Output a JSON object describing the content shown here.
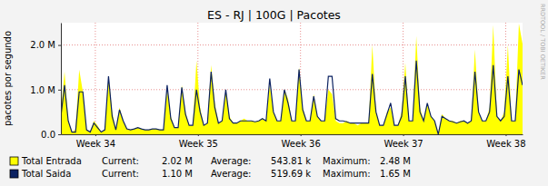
{
  "chart_data": {
    "type": "line",
    "title": "ES - RJ | 100G | Pacotes",
    "y_label": "pacotes por segundo",
    "watermark": "RRDTOOL / TOBI OETIKER",
    "x": [
      0,
      0.25,
      0.5,
      0.75,
      1,
      1.25,
      1.5,
      1.75,
      2,
      2.25,
      2.5,
      2.75,
      3,
      3.25,
      3.5,
      3.75,
      4,
      4.25,
      4.5,
      4.75,
      5,
      5.25,
      5.5,
      5.75,
      6,
      6.25,
      6.5,
      6.75,
      7,
      7.25,
      7.5,
      7.75,
      8,
      8.25,
      8.5,
      8.75,
      9,
      9.25,
      9.5,
      9.75,
      10,
      10.25,
      10.5,
      10.75,
      11,
      11.25,
      11.5,
      11.75,
      12,
      12.25,
      12.5,
      12.75,
      13,
      13.25,
      13.5,
      13.75,
      14,
      14.25,
      14.5,
      14.75,
      15,
      15.25,
      15.5,
      15.75,
      16,
      16.25,
      16.5,
      16.75,
      17,
      17.25,
      17.5,
      17.75,
      18,
      18.25,
      18.5,
      18.75,
      19,
      19.25,
      19.5,
      19.75,
      20,
      20.25,
      20.5,
      20.75,
      21,
      21.25,
      21.5,
      21.75,
      22,
      22.25,
      22.5,
      22.75,
      23,
      23.25,
      23.5,
      23.75,
      24,
      24.25,
      24.5,
      24.75,
      25,
      25.25,
      25.5,
      25.75,
      26,
      26.25,
      26.5,
      26.75,
      27,
      27.25,
      27.5,
      27.75,
      28,
      28.25,
      28.5,
      28.75,
      29,
      29.25,
      29.5,
      29.75,
      30,
      30.25,
      30.5,
      30.75,
      31,
      31.25,
      31.5
    ],
    "series": [
      {
        "name": "Total Entrada",
        "type": "area",
        "color": "#ffff00",
        "values": [
          500000,
          1400000,
          300000,
          50000,
          100000,
          1450000,
          950000,
          100000,
          50000,
          300000,
          200000,
          50000,
          100000,
          1300000,
          500000,
          100000,
          600000,
          300000,
          120000,
          100000,
          120000,
          150000,
          120000,
          100000,
          100000,
          120000,
          120000,
          100000,
          100000,
          1000000,
          400000,
          150000,
          150000,
          1100000,
          500000,
          200000,
          200000,
          1650000,
          600000,
          200000,
          250000,
          1550000,
          700000,
          250000,
          300000,
          1000000,
          400000,
          250000,
          250000,
          300000,
          350000,
          300000,
          300000,
          280000,
          300000,
          350000,
          300000,
          1100000,
          500000,
          300000,
          300000,
          1000000,
          800000,
          300000,
          300000,
          1500000,
          600000,
          300000,
          300000,
          900000,
          400000,
          300000,
          300000,
          1000000,
          900000,
          300000,
          250000,
          250000,
          300000,
          250000,
          250000,
          200000,
          250000,
          250000,
          250000,
          2000000,
          500000,
          200000,
          200000,
          500000,
          600000,
          200000,
          200000,
          500000,
          1600000,
          300000,
          300000,
          2200000,
          600000,
          300000,
          700000,
          400000,
          300000,
          0,
          450000,
          350000,
          300000,
          300000,
          250000,
          300000,
          300000,
          250000,
          300000,
          1900000,
          500000,
          300000,
          300000,
          600000,
          2450000,
          400000,
          300000,
          500000,
          2000000,
          300000,
          300000,
          2480000,
          2020000
        ],
        "stats": [
          {
            "label": "Current:",
            "value": 2020000,
            "value_label": "2.02 M"
          },
          {
            "label": "Average:",
            "value": 543810,
            "value_label": "543.81 k"
          },
          {
            "label": "Maximum:",
            "value": 2480000,
            "value_label": "2.48 M"
          }
        ]
      },
      {
        "name": "Total Saida",
        "type": "line",
        "color": "#0b2161",
        "values": [
          400000,
          1100000,
          300000,
          50000,
          50000,
          950000,
          950000,
          100000,
          50000,
          250000,
          150000,
          50000,
          100000,
          1300000,
          400000,
          100000,
          550000,
          300000,
          120000,
          100000,
          120000,
          150000,
          120000,
          100000,
          100000,
          120000,
          120000,
          100000,
          100000,
          1100000,
          350000,
          150000,
          150000,
          1050000,
          450000,
          200000,
          200000,
          1000000,
          500000,
          200000,
          250000,
          1400000,
          600000,
          250000,
          300000,
          1000000,
          350000,
          250000,
          250000,
          300000,
          300000,
          300000,
          300000,
          280000,
          300000,
          350000,
          300000,
          1250000,
          500000,
          300000,
          300000,
          1000000,
          700000,
          300000,
          300000,
          1450000,
          550000,
          300000,
          300000,
          850000,
          400000,
          300000,
          300000,
          1300000,
          1300000,
          350000,
          300000,
          300000,
          280000,
          250000,
          250000,
          250000,
          250000,
          250000,
          250000,
          1350000,
          500000,
          200000,
          200000,
          450000,
          700000,
          200000,
          200000,
          400000,
          1300000,
          300000,
          300000,
          1650000,
          500000,
          300000,
          700000,
          400000,
          300000,
          0,
          400000,
          350000,
          300000,
          280000,
          250000,
          280000,
          300000,
          250000,
          300000,
          1400000,
          500000,
          300000,
          300000,
          500000,
          1550000,
          400000,
          300000,
          400000,
          1300000,
          300000,
          300000,
          1450000,
          1100000
        ],
        "stats": [
          {
            "label": "Current:",
            "value": 1100000,
            "value_label": "1.10 M"
          },
          {
            "label": "Average:",
            "value": 519690,
            "value_label": "519.69 k"
          },
          {
            "label": "Maximum:",
            "value": 1650000,
            "value_label": "1.65 M"
          }
        ]
      }
    ],
    "xlim": [
      0,
      31.5
    ],
    "xticks": [
      {
        "value": 2.35,
        "label": "Week 34"
      },
      {
        "value": 9.35,
        "label": "Week 35"
      },
      {
        "value": 16.35,
        "label": "Week 36"
      },
      {
        "value": 23.35,
        "label": "Week 37"
      },
      {
        "value": 30.35,
        "label": "Week 38"
      }
    ],
    "ylim": [
      0,
      2500000
    ],
    "yticks": [
      {
        "value": 0,
        "label": "0.0"
      },
      {
        "value": 1000000,
        "label": "1.0 M"
      },
      {
        "value": 2000000,
        "label": "2.0 M"
      }
    ],
    "grid": true,
    "legend": "bottom-left"
  }
}
